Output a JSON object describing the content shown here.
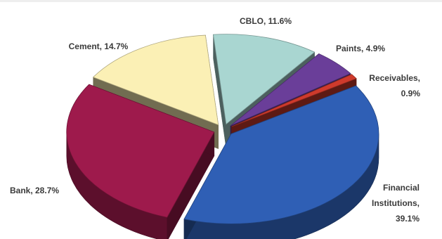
{
  "chart_data": {
    "type": "pie",
    "style": "3d-exploded",
    "title": "",
    "slices": [
      {
        "label": "CBLO",
        "value": 11.6,
        "color": "#a9d6d1"
      },
      {
        "label": "Paints",
        "value": 4.9,
        "color": "#6a3e99"
      },
      {
        "label": "Receivables",
        "value": 0.9,
        "color": "#cf3a2c"
      },
      {
        "label": "Financial Institutions",
        "value": 39.1,
        "color": "#2f5fb5"
      },
      {
        "label": "Bank",
        "value": 28.7,
        "color": "#9e1a4c"
      },
      {
        "label": "Cement",
        "value": 14.7,
        "color": "#fbf0b5"
      }
    ],
    "labels": [
      {
        "lines": [
          "CBLO, 11.6%"
        ]
      },
      {
        "lines": [
          "Paints, 4.9%"
        ]
      },
      {
        "lines": [
          "Receivables,",
          "0.9%"
        ]
      },
      {
        "lines": [
          "Financial",
          "Institutions,",
          "39.1%"
        ]
      },
      {
        "lines": [
          "Bank, 28.7%"
        ]
      },
      {
        "lines": [
          "Cement, 14.7%"
        ]
      }
    ]
  }
}
